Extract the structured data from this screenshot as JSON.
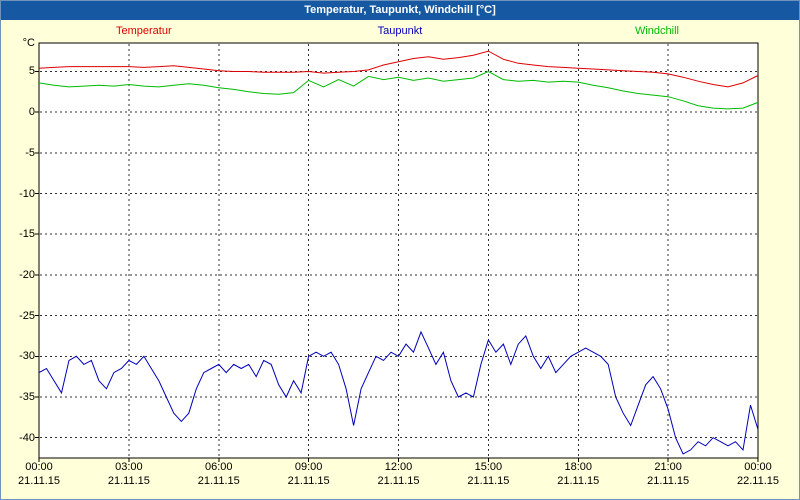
{
  "window": {
    "title": "Temperatur, Taupunkt, Windchill [°C]"
  },
  "legend": [
    {
      "label": "Temperatur",
      "color": "#dd0000"
    },
    {
      "label": "Taupunkt",
      "color": "#0000b8"
    },
    {
      "label": "Windchill",
      "color": "#00bb00"
    }
  ],
  "chart_data": {
    "type": "line",
    "title": "Temperatur, Taupunkt, Windchill [°C]",
    "y_unit": "°C",
    "ylim": [
      -42.5,
      8.5
    ],
    "y_ticks": [
      5,
      0,
      -5,
      -10,
      -15,
      -20,
      -25,
      -30,
      -35,
      -40
    ],
    "x_range": [
      0,
      24
    ],
    "x_ticks": [
      {
        "hour": 0,
        "time": "00:00",
        "date": "21.11.15"
      },
      {
        "hour": 3,
        "time": "03:00",
        "date": "21.11.15"
      },
      {
        "hour": 6,
        "time": "06:00",
        "date": "21.11.15"
      },
      {
        "hour": 9,
        "time": "09:00",
        "date": "21.11.15"
      },
      {
        "hour": 12,
        "time": "12:00",
        "date": "21.11.15"
      },
      {
        "hour": 15,
        "time": "15:00",
        "date": "21.11.15"
      },
      {
        "hour": 18,
        "time": "18:00",
        "date": "21.11.15"
      },
      {
        "hour": 21,
        "time": "21:00",
        "date": "21.11.15"
      },
      {
        "hour": 24,
        "time": "00:00",
        "date": "22.11.15"
      }
    ],
    "grid": {
      "horizontal_every": 5,
      "vertical_every_hours": 3,
      "style": "dashed"
    },
    "series": [
      {
        "name": "Temperatur",
        "color": "#dd0000",
        "x_step_hours": 0.5,
        "values": [
          5.4,
          5.5,
          5.6,
          5.6,
          5.6,
          5.6,
          5.6,
          5.5,
          5.6,
          5.7,
          5.5,
          5.3,
          5.1,
          5.0,
          5.0,
          4.9,
          4.9,
          4.9,
          5.0,
          4.8,
          4.9,
          5.0,
          5.2,
          5.8,
          6.2,
          6.6,
          6.8,
          6.5,
          6.7,
          7.0,
          7.5,
          6.5,
          6.0,
          5.8,
          5.6,
          5.5,
          5.4,
          5.3,
          5.2,
          5.1,
          5.0,
          4.9,
          4.7,
          4.3,
          3.8,
          3.4,
          3.1,
          3.6,
          4.5
        ]
      },
      {
        "name": "Taupunkt",
        "color": "#0000b8",
        "x_step_hours": 0.25,
        "values": [
          -32,
          -31.5,
          -33,
          -34.5,
          -30.5,
          -30,
          -31,
          -30.5,
          -33,
          -34,
          -32,
          -31.5,
          -30.5,
          -31,
          -30,
          -31.5,
          -33,
          -35,
          -37,
          -38,
          -37,
          -34,
          -32,
          -31.5,
          -31,
          -32,
          -31,
          -31.5,
          -31,
          -32.5,
          -30.5,
          -31,
          -33.5,
          -35,
          -33,
          -34.5,
          -30,
          -29.5,
          -30,
          -29.5,
          -31,
          -34,
          -38.5,
          -34,
          -32,
          -30,
          -30.5,
          -29.5,
          -30,
          -28.5,
          -29.5,
          -27,
          -29,
          -31,
          -29.5,
          -33,
          -35,
          -34.5,
          -35,
          -31,
          -28,
          -29.5,
          -28.5,
          -31,
          -28.5,
          -27.5,
          -30,
          -31.5,
          -30,
          -32,
          -31,
          -30,
          -29.5,
          -29,
          -29.5,
          -30,
          -31,
          -35,
          -37,
          -38.5,
          -36,
          -33.5,
          -32.5,
          -34,
          -36.5,
          -40,
          -42,
          -41.5,
          -40.5,
          -41,
          -40,
          -40.5,
          -41,
          -40.5,
          -41.5,
          -36,
          -39
        ]
      },
      {
        "name": "Windchill",
        "color": "#00bb00",
        "x_step_hours": 0.5,
        "values": [
          3.6,
          3.3,
          3.1,
          3.2,
          3.3,
          3.2,
          3.4,
          3.2,
          3.1,
          3.3,
          3.5,
          3.3,
          3.0,
          2.8,
          2.5,
          2.3,
          2.2,
          2.4,
          3.9,
          3.1,
          4.0,
          3.2,
          4.4,
          4.0,
          4.3,
          3.9,
          4.2,
          3.8,
          4.0,
          4.2,
          5.0,
          4.0,
          3.8,
          3.9,
          3.7,
          3.8,
          3.7,
          3.3,
          3.0,
          2.6,
          2.3,
          2.1,
          1.9,
          1.4,
          0.8,
          0.5,
          0.4,
          0.5,
          1.2
        ]
      }
    ]
  }
}
